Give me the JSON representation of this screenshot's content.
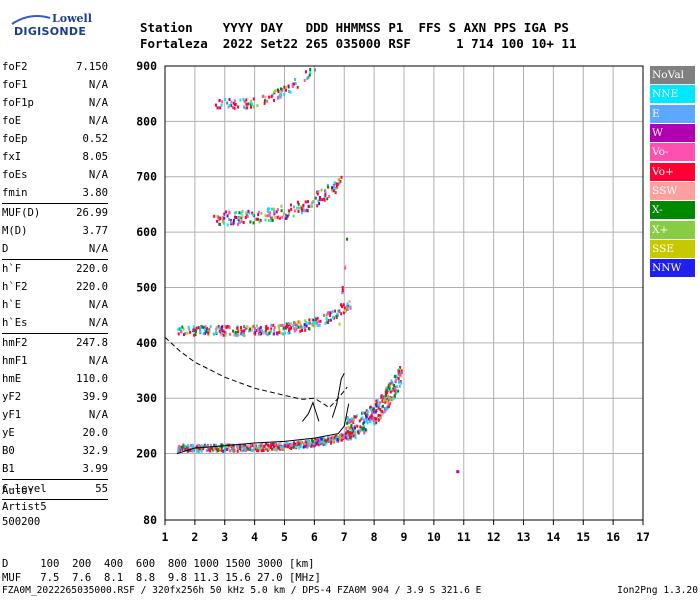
{
  "logo": {
    "line1": "Lowell",
    "line2": "DIGISONDE"
  },
  "header": {
    "row1": "Station    YYYY DAY   DDD HHMMSS P1  FFS S AXN PPS IGA PS",
    "row2": "Fortaleza  2022 Set22 265 035000 RSF      1 714 100 10+ 11"
  },
  "params": {
    "group1": [
      {
        "label": "foF2",
        "value": "7.150"
      },
      {
        "label": "foF1",
        "value": "N/A"
      },
      {
        "label": "foF1p",
        "value": "N/A"
      },
      {
        "label": "foE",
        "value": "N/A"
      },
      {
        "label": "foEp",
        "value": "0.52"
      },
      {
        "label": "fxI",
        "value": "8.05"
      },
      {
        "label": "foEs",
        "value": "N/A"
      },
      {
        "label": "fmin",
        "value": "3.80"
      }
    ],
    "group2": [
      {
        "label": "MUF(D)",
        "value": "26.99"
      },
      {
        "label": "M(D)",
        "value": "3.77"
      },
      {
        "label": "D",
        "value": "N/A"
      }
    ],
    "group3": [
      {
        "label": "h`F",
        "value": "220.0"
      },
      {
        "label": "h`F2",
        "value": "220.0"
      },
      {
        "label": "h`E",
        "value": "N/A"
      },
      {
        "label": "h`Es",
        "value": "N/A"
      }
    ],
    "group4": [
      {
        "label": "hmF2",
        "value": "247.8"
      },
      {
        "label": "hmF1",
        "value": "N/A"
      },
      {
        "label": "hmE",
        "value": "110.0"
      },
      {
        "label": "yF2",
        "value": "39.9"
      },
      {
        "label": "yF1",
        "value": "N/A"
      },
      {
        "label": "yE",
        "value": "20.0"
      },
      {
        "label": "B0",
        "value": "32.9"
      },
      {
        "label": "B1",
        "value": "3.99"
      }
    ],
    "group5": [
      {
        "label": "C-level",
        "value": "55"
      }
    ]
  },
  "auto": {
    "line1": "Auto:",
    "line2": "Artist5",
    "line3": "500200"
  },
  "legend": [
    {
      "label": "NoVal",
      "color": "#808080"
    },
    {
      "label": "NNE",
      "color": "#00e8ff"
    },
    {
      "label": "E",
      "color": "#5aa8ff"
    },
    {
      "label": "W",
      "color": "#b000b0"
    },
    {
      "label": "Vo-",
      "color": "#ff4fb0"
    },
    {
      "label": "Vo+",
      "color": "#ff0030"
    },
    {
      "label": "SSW",
      "color": "#ffa0a0"
    },
    {
      "label": "X-",
      "color": "#008800"
    },
    {
      "label": "X+",
      "color": "#88cc44"
    },
    {
      "label": "SSE",
      "color": "#c8c800"
    },
    {
      "label": "NNW",
      "color": "#2020ee"
    }
  ],
  "bottom": {
    "line1": "D     100  200  400  600  800 1000 1500 3000 [km]",
    "line2": "MUF   7.5  7.6  8.1  8.8  9.8 11.3 15.6 27.0 [MHz]"
  },
  "footer": {
    "left": "FZA0M_2022265035000.RSF / 320fx256h 50 kHz 5.0 km / DPS-4 FZA0M 904 / 3.9 S 321.6 E",
    "right": "Ion2Png 1.3.20"
  },
  "chart_data": {
    "type": "scatter",
    "xlim": [
      1,
      17
    ],
    "ylim": [
      80,
      900
    ],
    "x_ticks": [
      1,
      2,
      3,
      4,
      5,
      6,
      7,
      8,
      9,
      10,
      11,
      12,
      13,
      14,
      15,
      16,
      17
    ],
    "y_ticks": [
      80,
      200,
      300,
      400,
      500,
      600,
      700,
      800,
      900
    ],
    "grid": true,
    "traces": [
      {
        "f0": 1.4,
        "f1": 7.2,
        "h0": 210,
        "h1": 235,
        "curv": 4,
        "spread": 12,
        "density": 1.0
      },
      {
        "f0": 7.0,
        "f1": 8.9,
        "h0": 240,
        "h1": 340,
        "curv": 2,
        "spread": 40,
        "density": 1.5
      },
      {
        "f0": 1.4,
        "f1": 7.2,
        "h0": 420,
        "h1": 470,
        "curv": 5,
        "spread": 18,
        "density": 0.55
      },
      {
        "f0": 6.8,
        "f1": 7.1,
        "h0": 420,
        "h1": 600,
        "curv": 1,
        "spread": 25,
        "density": 0.35
      },
      {
        "f0": 2.6,
        "f1": 6.9,
        "h0": 622,
        "h1": 690,
        "curv": 3,
        "spread": 25,
        "density": 0.45
      },
      {
        "f0": 2.6,
        "f1": 6.0,
        "h0": 830,
        "h1": 900,
        "curv": 3,
        "spread": 18,
        "density": 0.3
      }
    ],
    "isolated_points": [
      {
        "f": 10.75,
        "h": 170
      }
    ],
    "profile_dashed": [
      [
        1.0,
        410
      ],
      [
        1.5,
        385
      ],
      [
        2.0,
        365
      ],
      [
        3.0,
        338
      ],
      [
        4.0,
        318
      ],
      [
        5.0,
        305
      ],
      [
        5.6,
        298
      ],
      [
        6.0,
        300
      ],
      [
        6.3,
        290
      ],
      [
        6.5,
        283
      ],
      [
        6.8,
        300
      ],
      [
        7.1,
        320
      ]
    ],
    "profile_solid": [
      [
        1.4,
        200
      ],
      [
        2.0,
        210
      ],
      [
        3.0,
        214
      ],
      [
        4.0,
        219
      ],
      [
        5.0,
        222
      ],
      [
        6.0,
        228
      ],
      [
        6.8,
        236
      ],
      [
        7.0,
        250
      ],
      [
        7.15,
        290
      ]
    ],
    "profile_solid2": [
      [
        5.6,
        258
      ],
      [
        5.8,
        272
      ],
      [
        5.95,
        292
      ],
      [
        6.05,
        275
      ],
      [
        6.15,
        258
      ]
    ],
    "profile_solid3": [
      [
        6.6,
        265
      ],
      [
        6.75,
        290
      ],
      [
        6.9,
        335
      ],
      [
        7.0,
        345
      ]
    ]
  }
}
